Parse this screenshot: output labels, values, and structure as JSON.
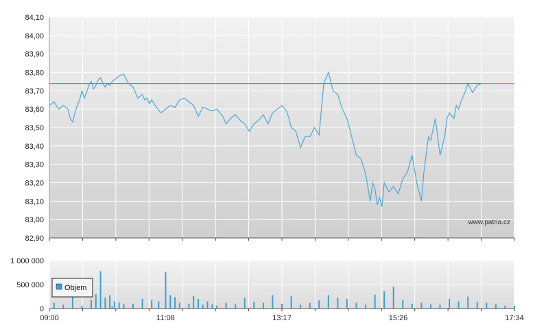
{
  "watermark": "www.patria.cz",
  "colors": {
    "price_line": "#4aa8d8",
    "reference_line": "#d03a2a",
    "volume_bar": "#3aa0d6",
    "grid": "#ffffff",
    "plot_bg_top": "#f2f2f2",
    "plot_bg_bottom": "#cfcfcf"
  },
  "chart_data": [
    {
      "type": "line",
      "ylim": [
        82.9,
        84.1
      ],
      "y_ticks": [
        "84,10",
        "84,00",
        "83,90",
        "83,80",
        "83,70",
        "83,60",
        "83,50",
        "83,40",
        "83,30",
        "83,20",
        "83,10",
        "83,00",
        "82,90"
      ],
      "x_tick_labels": [
        "09:00",
        "11:08",
        "13:17",
        "15:26",
        "17:34"
      ],
      "reference_value": 83.74,
      "series": [
        {
          "x": [
            0,
            0.01,
            0.02,
            0.03,
            0.04,
            0.045,
            0.05,
            0.055,
            0.06,
            0.065,
            0.07,
            0.075,
            0.08,
            0.085,
            0.09,
            0.095,
            0.1,
            0.105,
            0.11,
            0.115,
            0.12,
            0.125,
            0.13,
            0.135,
            0.14,
            0.15,
            0.16,
            0.17,
            0.18,
            0.19,
            0.2,
            0.205,
            0.21,
            0.215,
            0.22,
            0.23,
            0.24,
            0.25,
            0.26,
            0.27,
            0.28,
            0.29,
            0.3,
            0.31,
            0.32,
            0.33,
            0.34,
            0.35,
            0.36,
            0.37,
            0.375,
            0.38,
            0.39,
            0.4,
            0.41,
            0.42,
            0.43,
            0.44,
            0.45,
            0.46,
            0.47,
            0.48,
            0.49,
            0.5,
            0.51,
            0.515,
            0.52,
            0.53,
            0.54,
            0.55,
            0.56,
            0.57,
            0.58,
            0.59,
            0.6,
            0.61,
            0.62,
            0.63,
            0.64,
            0.65,
            0.655,
            0.66,
            0.67,
            0.68,
            0.69,
            0.695,
            0.7,
            0.705,
            0.71,
            0.715,
            0.72,
            0.73,
            0.74,
            0.75,
            0.76,
            0.77,
            0.78,
            0.79,
            0.8,
            0.805,
            0.81,
            0.815,
            0.82,
            0.83,
            0.84,
            0.845,
            0.85,
            0.855,
            0.86,
            0.87,
            0.875,
            0.88,
            0.885,
            0.89,
            0.895,
            0.9,
            0.91,
            0.92,
            0.93,
            0.94,
            0.95,
            0.96,
            0.97,
            0.975,
            0.98,
            0.99,
            1.0
          ],
          "values": [
            83.62,
            83.64,
            83.6,
            83.62,
            83.6,
            83.55,
            83.53,
            83.58,
            83.62,
            83.65,
            83.7,
            83.66,
            83.69,
            83.73,
            83.75,
            83.71,
            83.73,
            83.76,
            83.77,
            83.74,
            83.72,
            83.74,
            83.73,
            83.75,
            83.76,
            83.78,
            83.79,
            83.74,
            83.72,
            83.66,
            83.68,
            83.65,
            83.66,
            83.63,
            83.65,
            83.61,
            83.58,
            83.6,
            83.62,
            83.61,
            83.65,
            83.66,
            83.64,
            83.62,
            83.56,
            83.61,
            83.6,
            83.59,
            83.6,
            83.57,
            83.55,
            83.52,
            83.55,
            83.57,
            83.54,
            83.52,
            83.48,
            83.52,
            83.54,
            83.57,
            83.52,
            83.58,
            83.6,
            83.62,
            83.59,
            83.55,
            83.5,
            83.48,
            83.39,
            83.45,
            83.45,
            83.5,
            83.46,
            83.74,
            83.8,
            83.7,
            83.68,
            83.6,
            83.55,
            83.45,
            83.4,
            83.35,
            83.33,
            83.25,
            83.1,
            83.2,
            83.17,
            83.08,
            83.12,
            83.07,
            83.2,
            83.15,
            83.18,
            83.14,
            83.22,
            83.26,
            83.35,
            83.2,
            83.1,
            83.25,
            83.35,
            83.45,
            83.43,
            83.55,
            83.35,
            83.4,
            83.45,
            83.55,
            83.58,
            83.55,
            83.62,
            83.6,
            83.64,
            83.67,
            83.7,
            83.74,
            83.69,
            83.73,
            83.74,
            83.74,
            83.74,
            83.74,
            83.74,
            83.74,
            83.74,
            83.74,
            83.74
          ]
        }
      ]
    },
    {
      "type": "bar",
      "ylim": [
        0,
        1000000
      ],
      "y_ticks": [
        "1 000 000",
        "500 000",
        "0"
      ],
      "x_tick_labels": [
        "09:00",
        "11:08",
        "13:17",
        "15:26",
        "17:34"
      ],
      "series": [
        {
          "name": "Objem",
          "x": [
            0.01,
            0.03,
            0.05,
            0.07,
            0.09,
            0.1,
            0.11,
            0.12,
            0.13,
            0.135,
            0.14,
            0.15,
            0.16,
            0.18,
            0.2,
            0.22,
            0.235,
            0.25,
            0.26,
            0.27,
            0.28,
            0.3,
            0.31,
            0.32,
            0.33,
            0.34,
            0.35,
            0.36,
            0.38,
            0.4,
            0.42,
            0.44,
            0.46,
            0.48,
            0.5,
            0.52,
            0.54,
            0.56,
            0.58,
            0.6,
            0.62,
            0.64,
            0.66,
            0.68,
            0.7,
            0.72,
            0.74,
            0.76,
            0.78,
            0.8,
            0.82,
            0.84,
            0.86,
            0.88,
            0.9,
            0.92,
            0.94,
            0.96,
            0.98,
            1.0
          ],
          "values": [
            120000,
            80000,
            250000,
            60000,
            180000,
            300000,
            780000,
            230000,
            280000,
            50000,
            150000,
            120000,
            90000,
            100000,
            200000,
            180000,
            150000,
            760000,
            280000,
            240000,
            120000,
            100000,
            260000,
            200000,
            80000,
            150000,
            90000,
            60000,
            120000,
            90000,
            220000,
            140000,
            120000,
            280000,
            100000,
            260000,
            80000,
            120000,
            170000,
            280000,
            230000,
            200000,
            120000,
            80000,
            290000,
            360000,
            460000,
            180000,
            100000,
            120000,
            90000,
            80000,
            200000,
            150000,
            250000,
            140000,
            120000,
            90000,
            60000,
            60000
          ]
        }
      ]
    }
  ]
}
